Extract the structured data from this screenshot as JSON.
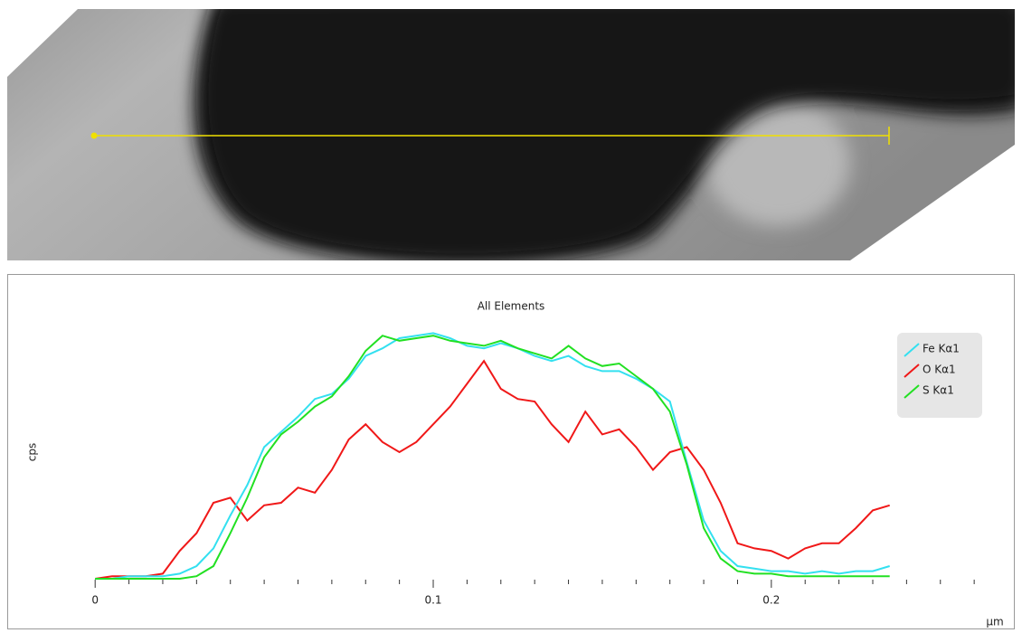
{
  "chart_data": {
    "type": "line",
    "title": "All Elements",
    "y_label": "cps",
    "x_label": "µm",
    "x": [
      0,
      0.005,
      0.01,
      0.015,
      0.02,
      0.025,
      0.03,
      0.035,
      0.04,
      0.045,
      0.05,
      0.055,
      0.06,
      0.065,
      0.07,
      0.075,
      0.08,
      0.085,
      0.09,
      0.095,
      0.1,
      0.105,
      0.11,
      0.115,
      0.12,
      0.125,
      0.13,
      0.135,
      0.14,
      0.145,
      0.15,
      0.155,
      0.16,
      0.165,
      0.17,
      0.175,
      0.18,
      0.185,
      0.19,
      0.195,
      0.2,
      0.205,
      0.21,
      0.215,
      0.22,
      0.225,
      0.23,
      0.235
    ],
    "series": [
      {
        "name": "Fe Kα1",
        "color": "#33e0f0",
        "values": [
          0,
          0,
          1,
          1,
          1,
          2,
          5,
          12,
          25,
          37,
          52,
          58,
          64,
          71,
          73,
          79,
          88,
          91,
          95,
          96,
          97,
          95,
          92,
          91,
          93,
          91,
          88,
          86,
          88,
          84,
          82,
          82,
          79,
          75,
          70,
          46,
          23,
          11,
          5,
          4,
          3,
          3,
          2,
          3,
          2,
          3,
          3,
          5
        ]
      },
      {
        "name": "O Kα1",
        "color": "#f01818",
        "values": [
          0,
          1,
          1,
          1,
          2,
          11,
          18,
          30,
          32,
          23,
          29,
          30,
          36,
          34,
          43,
          55,
          61,
          54,
          50,
          54,
          61,
          68,
          77,
          86,
          75,
          71,
          70,
          61,
          54,
          66,
          57,
          59,
          52,
          43,
          50,
          52,
          43,
          30,
          14,
          12,
          11,
          8,
          12,
          14,
          14,
          20,
          27,
          29
        ]
      },
      {
        "name": "S Kα1",
        "color": "#22e022",
        "values": [
          0,
          0,
          0,
          0,
          0,
          0,
          1,
          5,
          18,
          32,
          48,
          57,
          62,
          68,
          72,
          80,
          90,
          96,
          94,
          95,
          96,
          94,
          93,
          92,
          94,
          91,
          89,
          87,
          92,
          87,
          84,
          85,
          80,
          75,
          66,
          45,
          20,
          8,
          3,
          2,
          2,
          1,
          1,
          1,
          1,
          1,
          1,
          1
        ]
      }
    ],
    "xlim": [
      -0.026,
      0.272
    ],
    "ylim": [
      0,
      110
    ],
    "xticks": [
      0,
      0.1,
      0.2
    ],
    "xminor_ticks": [
      0.01,
      0.02,
      0.03,
      0.04,
      0.05,
      0.06,
      0.07,
      0.08,
      0.09,
      0.11,
      0.12,
      0.13,
      0.14,
      0.15,
      0.16,
      0.17,
      0.18,
      0.19,
      0.21,
      0.22,
      0.23,
      0.24,
      0.25,
      0.26
    ],
    "legend": "upper right"
  }
}
